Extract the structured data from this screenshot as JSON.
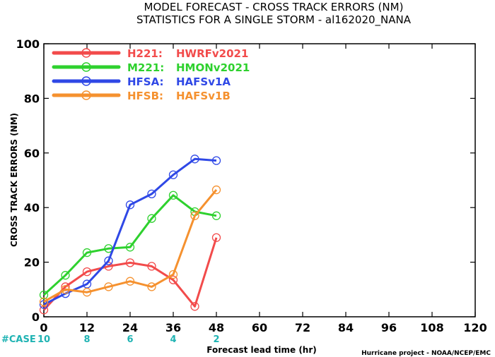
{
  "chart_data": {
    "type": "line",
    "title": "MODEL FORECAST - CROSS TRACK ERRORS (NM)",
    "subtitle": "STATISTICS FOR A SINGLE STORM - al162020_NANA",
    "xlabel": "Forecast lead time (hr)",
    "ylabel": "CROSS TRACK ERRORS (NM)",
    "xlim": [
      0,
      120
    ],
    "ylim": [
      0,
      100
    ],
    "xticks": [
      0,
      12,
      24,
      36,
      48,
      60,
      72,
      84,
      96,
      108,
      120
    ],
    "yticks": [
      0,
      20,
      40,
      60,
      80,
      100
    ],
    "grid": false,
    "legend_position": "top-left",
    "case_label": "#CASE",
    "case_counts": [
      {
        "x": 0,
        "label": "10"
      },
      {
        "x": 12,
        "label": "8"
      },
      {
        "x": 24,
        "label": "6"
      },
      {
        "x": 36,
        "label": "4"
      },
      {
        "x": 48,
        "label": "2"
      }
    ],
    "credit": "Hurricane project - NOAA/NCEP/EMC",
    "series": [
      {
        "name": "H221:",
        "label": "HWRFv2021",
        "color": "#f24b4b",
        "x": [
          0,
          6,
          12,
          18,
          24,
          30,
          36,
          42,
          48
        ],
        "y": [
          2.5,
          11,
          16.5,
          18.5,
          19.8,
          18.5,
          13.5,
          3.8,
          29
        ]
      },
      {
        "name": "M221:",
        "label": "HMONv2021",
        "color": "#2ed12e",
        "x": [
          0,
          6,
          12,
          18,
          24,
          30,
          36,
          42,
          48
        ],
        "y": [
          8,
          15.2,
          23.5,
          25,
          25.5,
          36,
          44.5,
          38.5,
          37
        ]
      },
      {
        "name": "HFSA:",
        "label": "HAFSv1A",
        "color": "#2f48e6",
        "x": [
          0,
          6,
          12,
          18,
          24,
          30,
          36,
          42,
          48
        ],
        "y": [
          4.5,
          8.5,
          12,
          20.5,
          41,
          45,
          52,
          57.8,
          57.2
        ]
      },
      {
        "name": "HFSB:",
        "label": "HAFSv1B",
        "color": "#f5912f",
        "x": [
          0,
          6,
          12,
          18,
          24,
          30,
          36,
          42,
          48
        ],
        "y": [
          5.5,
          10,
          9,
          11,
          13,
          11,
          15.5,
          37,
          46.5
        ]
      }
    ]
  }
}
